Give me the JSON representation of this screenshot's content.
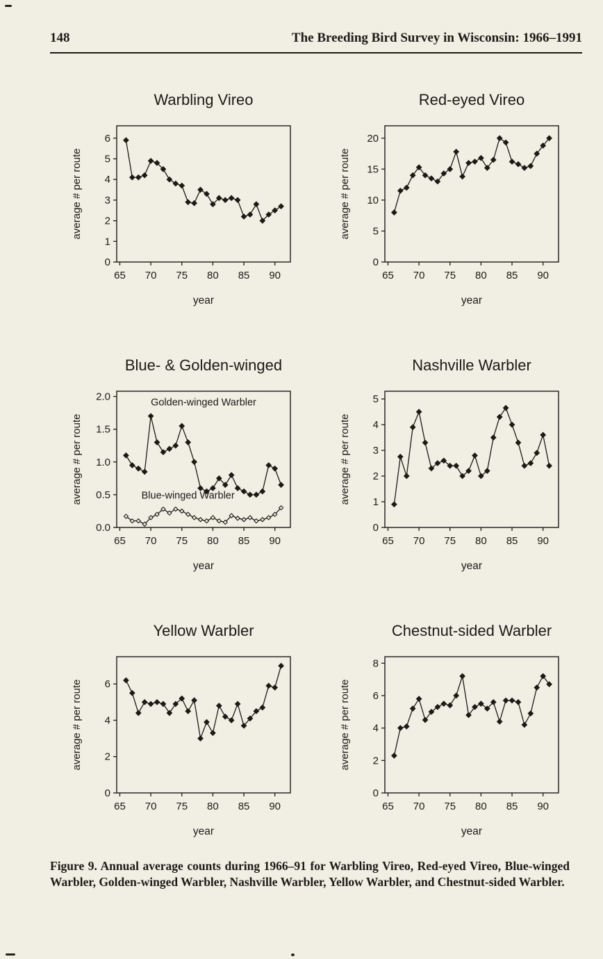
{
  "page": {
    "page_number": "148",
    "running_title": "The Breeding Bird Survey in Wisconsin: 1966–1991",
    "caption": "Figure 9. Annual average counts during 1966–91 for Warbling Vireo, Red-eyed Vireo, Blue-winged Warbler, Golden-winged Warbler, Nashville Warbler, Yellow Warbler, and Chestnut-sided Warbler."
  },
  "colors": {
    "ink": "#1d1a16",
    "paper": "#f1eee4"
  },
  "chart_data": [
    {
      "type": "line",
      "title": "Warbling Vireo",
      "xlabel": "year",
      "ylabel": "average # per route",
      "x": [
        1966,
        1967,
        1968,
        1969,
        1970,
        1971,
        1972,
        1973,
        1974,
        1975,
        1976,
        1977,
        1978,
        1979,
        1980,
        1981,
        1982,
        1983,
        1984,
        1985,
        1986,
        1987,
        1988,
        1989,
        1990,
        1991
      ],
      "series": [
        {
          "name": "Warbling Vireo",
          "marker": "filled-diamond",
          "values": [
            5.9,
            4.1,
            4.1,
            4.2,
            4.9,
            4.8,
            4.5,
            4.0,
            3.8,
            3.7,
            2.9,
            2.85,
            3.5,
            3.3,
            2.8,
            3.1,
            3.0,
            3.1,
            3.0,
            2.2,
            2.3,
            2.8,
            2.0,
            2.3,
            2.5,
            2.7
          ]
        }
      ],
      "xlim": [
        1964.5,
        1992.5
      ],
      "ylim": [
        0,
        6.6
      ],
      "xticks": [
        1965,
        1970,
        1975,
        1980,
        1985,
        1990
      ],
      "xtick_labels": [
        "65",
        "70",
        "75",
        "80",
        "85",
        "90"
      ],
      "ytick_values": [
        0,
        1,
        2,
        3,
        4,
        5,
        6
      ],
      "ytick_labels": [
        "0",
        "1",
        "2",
        "3",
        "4",
        "5",
        "6"
      ],
      "grid": false,
      "annotations": []
    },
    {
      "type": "line",
      "title": "Red-eyed Vireo",
      "xlabel": "year",
      "ylabel": "average # per route",
      "x": [
        1966,
        1967,
        1968,
        1969,
        1970,
        1971,
        1972,
        1973,
        1974,
        1975,
        1976,
        1977,
        1978,
        1979,
        1980,
        1981,
        1982,
        1983,
        1984,
        1985,
        1986,
        1987,
        1988,
        1989,
        1990,
        1991
      ],
      "series": [
        {
          "name": "Red-eyed Vireo",
          "marker": "filled-diamond",
          "values": [
            8.0,
            11.5,
            12.0,
            14.0,
            15.3,
            14.0,
            13.5,
            13.0,
            14.3,
            15.0,
            17.8,
            13.8,
            16.0,
            16.2,
            16.8,
            15.2,
            16.5,
            20.0,
            19.3,
            16.2,
            15.8,
            15.2,
            15.5,
            17.5,
            18.8,
            20.0
          ]
        }
      ],
      "xlim": [
        1964.5,
        1992.5
      ],
      "ylim": [
        0,
        22
      ],
      "xticks": [
        1965,
        1970,
        1975,
        1980,
        1985,
        1990
      ],
      "xtick_labels": [
        "65",
        "70",
        "75",
        "80",
        "85",
        "90"
      ],
      "ytick_values": [
        0,
        5,
        10,
        15,
        20
      ],
      "ytick_labels": [
        "0",
        "5",
        "10",
        "15",
        "20"
      ],
      "grid": false,
      "annotations": []
    },
    {
      "type": "line",
      "title": "Blue- & Golden-winged",
      "xlabel": "year",
      "ylabel": "average # per route",
      "x": [
        1966,
        1967,
        1968,
        1969,
        1970,
        1971,
        1972,
        1973,
        1974,
        1975,
        1976,
        1977,
        1978,
        1979,
        1980,
        1981,
        1982,
        1983,
        1984,
        1985,
        1986,
        1987,
        1988,
        1989,
        1990,
        1991
      ],
      "series": [
        {
          "name": "Golden-winged Warbler",
          "marker": "filled-diamond",
          "values": [
            1.1,
            0.95,
            0.9,
            0.85,
            1.7,
            1.3,
            1.15,
            1.2,
            1.25,
            1.55,
            1.3,
            1.0,
            0.6,
            0.55,
            0.6,
            0.75,
            0.65,
            0.8,
            0.6,
            0.55,
            0.5,
            0.5,
            0.55,
            0.95,
            0.9,
            0.65
          ]
        },
        {
          "name": "Blue-winged Warbler",
          "marker": "open-diamond",
          "values": [
            0.17,
            0.1,
            0.1,
            0.05,
            0.15,
            0.2,
            0.28,
            0.22,
            0.28,
            0.25,
            0.2,
            0.15,
            0.12,
            0.1,
            0.15,
            0.1,
            0.08,
            0.18,
            0.14,
            0.12,
            0.15,
            0.1,
            0.12,
            0.15,
            0.2,
            0.3
          ]
        }
      ],
      "xlim": [
        1964.5,
        1992.5
      ],
      "ylim": [
        0,
        2.08
      ],
      "xticks": [
        1965,
        1970,
        1975,
        1980,
        1985,
        1990
      ],
      "xtick_labels": [
        "65",
        "70",
        "75",
        "80",
        "85",
        "90"
      ],
      "ytick_values": [
        0,
        0.5,
        1.0,
        1.5,
        2.0
      ],
      "ytick_labels": [
        "0.0",
        "0.5",
        "1.0",
        "1.5",
        "2.0"
      ],
      "grid": false,
      "annotations": [
        {
          "text": "Golden-winged Warbler",
          "x": 1978.5,
          "y": 1.86
        },
        {
          "text": "Blue-winged Warbler",
          "x": 1976,
          "y": 0.44
        }
      ]
    },
    {
      "type": "line",
      "title": "Nashville Warbler",
      "xlabel": "year",
      "ylabel": "average # per route",
      "x": [
        1966,
        1967,
        1968,
        1969,
        1970,
        1971,
        1972,
        1973,
        1974,
        1975,
        1976,
        1977,
        1978,
        1979,
        1980,
        1981,
        1982,
        1983,
        1984,
        1985,
        1986,
        1987,
        1988,
        1989,
        1990,
        1991
      ],
      "series": [
        {
          "name": "Nashville Warbler",
          "marker": "filled-diamond",
          "values": [
            0.9,
            2.75,
            2.0,
            3.9,
            4.5,
            3.3,
            2.3,
            2.5,
            2.6,
            2.4,
            2.4,
            2.0,
            2.2,
            2.8,
            2.0,
            2.2,
            3.5,
            4.3,
            4.65,
            4.0,
            3.3,
            2.4,
            2.5,
            2.9,
            3.6,
            2.4
          ]
        }
      ],
      "xlim": [
        1964.5,
        1992.5
      ],
      "ylim": [
        0,
        5.3
      ],
      "xticks": [
        1965,
        1970,
        1975,
        1980,
        1985,
        1990
      ],
      "xtick_labels": [
        "65",
        "70",
        "75",
        "80",
        "85",
        "90"
      ],
      "ytick_values": [
        0,
        1,
        2,
        3,
        4,
        5
      ],
      "ytick_labels": [
        "0",
        "1",
        "2",
        "3",
        "4",
        "5"
      ],
      "grid": false,
      "annotations": []
    },
    {
      "type": "line",
      "title": "Yellow Warbler",
      "xlabel": "year",
      "ylabel": "average # per route",
      "x": [
        1966,
        1967,
        1968,
        1969,
        1970,
        1971,
        1972,
        1973,
        1974,
        1975,
        1976,
        1977,
        1978,
        1979,
        1980,
        1981,
        1982,
        1983,
        1984,
        1985,
        1986,
        1987,
        1988,
        1989,
        1990,
        1991
      ],
      "series": [
        {
          "name": "Yellow Warbler",
          "marker": "filled-diamond",
          "values": [
            6.2,
            5.5,
            4.4,
            5.0,
            4.9,
            5.0,
            4.9,
            4.4,
            4.9,
            5.2,
            4.5,
            5.1,
            3.0,
            3.9,
            3.3,
            4.8,
            4.2,
            4.0,
            4.9,
            3.7,
            4.1,
            4.5,
            4.7,
            5.9,
            5.8,
            7.0
          ]
        }
      ],
      "xlim": [
        1964.5,
        1992.5
      ],
      "ylim": [
        0,
        7.5
      ],
      "xticks": [
        1965,
        1970,
        1975,
        1980,
        1985,
        1990
      ],
      "xtick_labels": [
        "65",
        "70",
        "75",
        "80",
        "85",
        "90"
      ],
      "ytick_values": [
        0,
        2,
        4,
        6
      ],
      "ytick_labels": [
        "0",
        "2",
        "4",
        "6"
      ],
      "grid": false,
      "annotations": []
    },
    {
      "type": "line",
      "title": "Chestnut-sided Warbler",
      "xlabel": "year",
      "ylabel": "average # per route",
      "x": [
        1966,
        1967,
        1968,
        1969,
        1970,
        1971,
        1972,
        1973,
        1974,
        1975,
        1976,
        1977,
        1978,
        1979,
        1980,
        1981,
        1982,
        1983,
        1984,
        1985,
        1986,
        1987,
        1988,
        1989,
        1990,
        1991
      ],
      "series": [
        {
          "name": "Chestnut-sided Warbler",
          "marker": "filled-diamond",
          "values": [
            2.3,
            4.0,
            4.1,
            5.2,
            5.8,
            4.5,
            5.0,
            5.3,
            5.5,
            5.4,
            6.0,
            7.2,
            4.8,
            5.3,
            5.5,
            5.2,
            5.6,
            4.4,
            5.7,
            5.7,
            5.6,
            4.2,
            4.9,
            6.5,
            7.2,
            6.7
          ]
        }
      ],
      "xlim": [
        1964.5,
        1992.5
      ],
      "ylim": [
        0,
        8.4
      ],
      "xticks": [
        1965,
        1970,
        1975,
        1980,
        1985,
        1990
      ],
      "xtick_labels": [
        "65",
        "70",
        "75",
        "80",
        "85",
        "90"
      ],
      "ytick_values": [
        0,
        2,
        4,
        6,
        8
      ],
      "ytick_labels": [
        "0",
        "2",
        "4",
        "6",
        "8"
      ],
      "grid": false,
      "annotations": []
    }
  ]
}
